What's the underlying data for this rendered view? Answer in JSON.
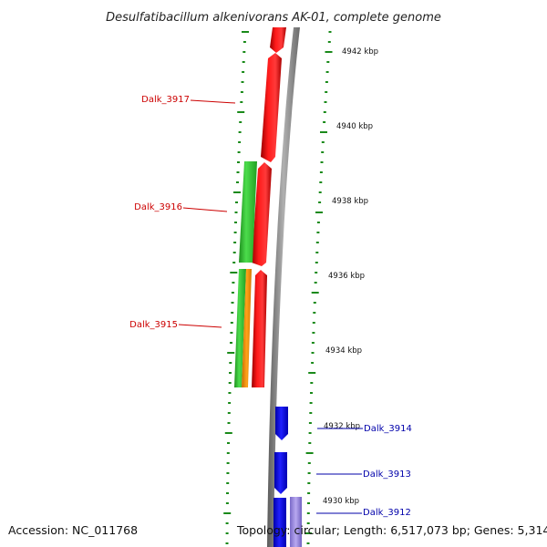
{
  "title": "Desulfatibacillum alkenivorans AK-01, complete genome",
  "accession": "Accession: NC_011768",
  "summary": "Topology: circular; Length: 6,517,073 bp; Genes: 5,314",
  "scale_labels": [
    "4942 kbp",
    "4940 kbp",
    "4938 kbp",
    "4936 kbp",
    "4934 kbp",
    "4932 kbp",
    "4930 kbp"
  ],
  "genes": [
    {
      "label": "Dalk_3917",
      "color": "#cc0000"
    },
    {
      "label": "Dalk_3916",
      "color": "#cc0000"
    },
    {
      "label": "Dalk_3915",
      "color": "#cc0000"
    },
    {
      "label": "Dalk_3914",
      "color": "#0000aa"
    },
    {
      "label": "Dalk_3913",
      "color": "#0000aa"
    },
    {
      "label": "Dalk_3912",
      "color": "#0000aa"
    }
  ],
  "colors": {
    "forward_cds": "#ff0000",
    "reverse_cds": "#0000ee",
    "green_feature": "#33cc33",
    "orange_feature": "#ff9900",
    "backbone": "#808080",
    "tick": "#1a8a1a"
  }
}
